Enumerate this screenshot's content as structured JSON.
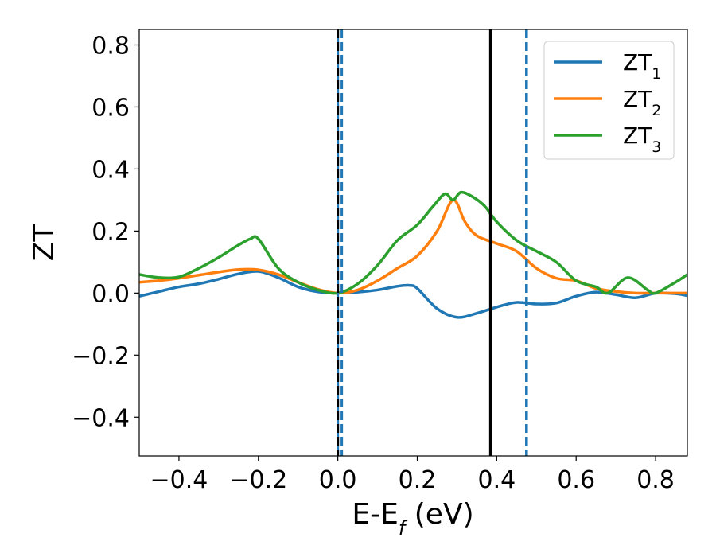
{
  "chart_data": {
    "type": "line",
    "xlabel_main": "E-E",
    "xlabel_sub": "f",
    "xlabel_unit": " (eV)",
    "ylabel": "ZT",
    "xlim": [
      -0.5,
      0.88
    ],
    "ylim": [
      -0.525,
      0.85
    ],
    "xticks": [
      -0.4,
      -0.2,
      0.0,
      0.2,
      0.4,
      0.6,
      0.8
    ],
    "xtick_labels": [
      "−0.4",
      "−0.2",
      "0.0",
      "0.2",
      "0.4",
      "0.6",
      "0.8"
    ],
    "yticks": [
      -0.4,
      -0.2,
      0.0,
      0.2,
      0.4,
      0.6,
      0.8
    ],
    "ytick_labels": [
      "−0.4",
      "−0.2",
      "0.0",
      "0.2",
      "0.4",
      "0.6",
      "0.8"
    ],
    "legend_placement": "top-right",
    "series": [
      {
        "name_main": "ZT",
        "name_sub": "1",
        "color": "#1f77b4",
        "x": [
          -0.5,
          -0.45,
          -0.4,
          -0.35,
          -0.3,
          -0.25,
          -0.2,
          -0.15,
          -0.1,
          -0.05,
          0.0,
          0.05,
          0.1,
          0.15,
          0.18,
          0.2,
          0.25,
          0.3,
          0.35,
          0.4,
          0.45,
          0.5,
          0.55,
          0.6,
          0.65,
          0.7,
          0.75,
          0.8,
          0.85,
          0.88
        ],
        "y": [
          -0.01,
          0.005,
          0.02,
          0.03,
          0.045,
          0.062,
          0.07,
          0.05,
          0.02,
          0.004,
          0.0,
          0.003,
          0.01,
          0.022,
          0.025,
          0.015,
          -0.05,
          -0.078,
          -0.065,
          -0.045,
          -0.03,
          -0.035,
          -0.032,
          -0.01,
          0.003,
          -0.005,
          -0.015,
          0.0,
          -0.002,
          -0.008
        ]
      },
      {
        "name_main": "ZT",
        "name_sub": "2",
        "color": "#ff7f0e",
        "x": [
          -0.5,
          -0.45,
          -0.4,
          -0.35,
          -0.3,
          -0.25,
          -0.2,
          -0.15,
          -0.1,
          -0.05,
          0.0,
          0.05,
          0.1,
          0.15,
          0.2,
          0.25,
          0.29,
          0.32,
          0.35,
          0.4,
          0.45,
          0.5,
          0.55,
          0.6,
          0.65,
          0.7,
          0.75,
          0.8,
          0.85,
          0.88
        ],
        "y": [
          0.035,
          0.04,
          0.048,
          0.058,
          0.068,
          0.076,
          0.075,
          0.06,
          0.035,
          0.012,
          0.0,
          0.01,
          0.04,
          0.08,
          0.12,
          0.2,
          0.3,
          0.23,
          0.185,
          0.16,
          0.135,
          0.08,
          0.048,
          0.04,
          0.015,
          0.005,
          0.0,
          0.0,
          0.0,
          0.0
        ]
      },
      {
        "name_main": "ZT",
        "name_sub": "3",
        "color": "#2ca02c",
        "x": [
          -0.5,
          -0.45,
          -0.4,
          -0.35,
          -0.3,
          -0.25,
          -0.22,
          -0.2,
          -0.15,
          -0.1,
          -0.05,
          0.0,
          0.05,
          0.1,
          0.15,
          0.2,
          0.24,
          0.27,
          0.29,
          0.31,
          0.34,
          0.37,
          0.4,
          0.45,
          0.5,
          0.55,
          0.6,
          0.65,
          0.68,
          0.73,
          0.78,
          0.8,
          0.85,
          0.88
        ],
        "y": [
          0.06,
          0.05,
          0.052,
          0.08,
          0.115,
          0.155,
          0.175,
          0.175,
          0.08,
          0.035,
          0.01,
          0.0,
          0.03,
          0.09,
          0.17,
          0.22,
          0.28,
          0.32,
          0.3,
          0.325,
          0.31,
          0.28,
          0.23,
          0.17,
          0.135,
          0.1,
          0.04,
          0.02,
          0.0,
          0.05,
          0.01,
          0.0,
          0.035,
          0.06
        ]
      }
    ],
    "vertical_lines": [
      {
        "x": 0.0,
        "style": "solid",
        "color": "#1f77b4",
        "width": 3
      },
      {
        "x": 0.0,
        "style": "dashed",
        "color": "#000000",
        "width": 3
      },
      {
        "x": 0.01,
        "style": "dashed",
        "color": "#1f77b4",
        "width": 3
      },
      {
        "x": 0.385,
        "style": "solid",
        "color": "#000000",
        "width": 4
      },
      {
        "x": 0.475,
        "style": "dashed",
        "color": "#1f77b4",
        "width": 3.5
      }
    ]
  }
}
